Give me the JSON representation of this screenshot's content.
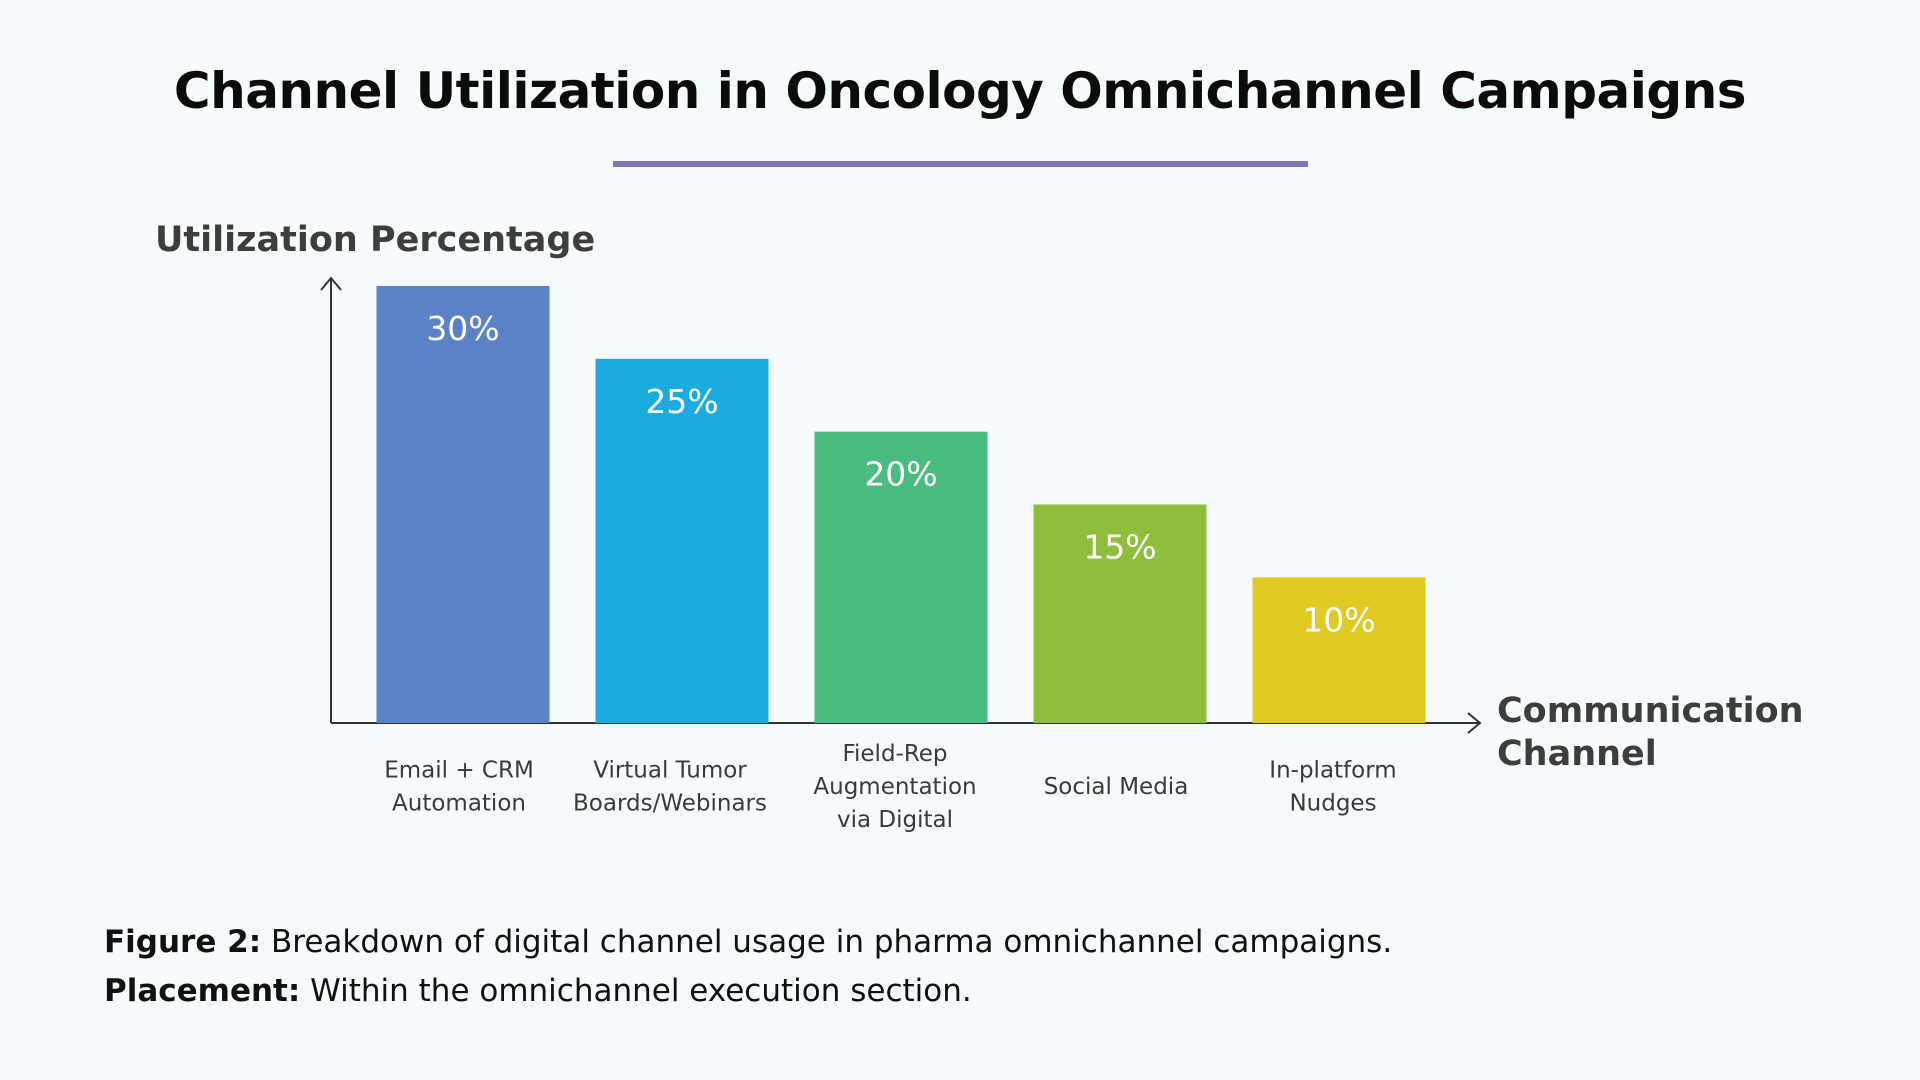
{
  "title": "Channel Utilization in Oncology Omnichannel Campaigns",
  "accent_color": "#8073bd",
  "caption": {
    "figure_label": "Figure 2:",
    "figure_text": " Breakdown of digital channel usage in pharma omnichannel campaigns.",
    "placement_label": "Placement:",
    "placement_text": " Within the omnichannel execution section."
  },
  "chart_data": {
    "type": "bar",
    "title": "Channel Utilization in Oncology Omnichannel Campaigns",
    "ylabel": "Utilization Percentage",
    "xlabel": "Communication Channel",
    "ylim": [
      0,
      30
    ],
    "grid": false,
    "categories": [
      "Email + CRM Automation",
      "Virtual Tumor Boards/Webinars",
      "Field-Rep Augmentation via Digital",
      "Social Media",
      "In-platform Nudges"
    ],
    "values": [
      30,
      25,
      20,
      15,
      10
    ],
    "data_labels": [
      "30%",
      "25%",
      "20%",
      "15%",
      "10%"
    ],
    "colors": [
      "#5b82c4",
      "#1bacdf",
      "#4bbc80",
      "#8fbe3d",
      "#e0ca24"
    ]
  }
}
